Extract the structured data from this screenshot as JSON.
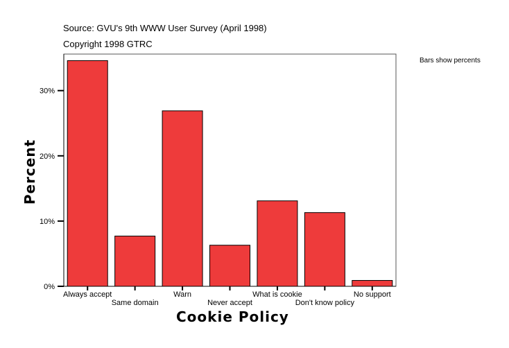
{
  "chart_data": {
    "type": "bar",
    "source_note": "Source: GVU's 9th WWW User Survey (April 1998)",
    "copyright_note": "Copyright 1998 GTRC",
    "legend_note": "Bars show percents",
    "xlabel": "Cookie Policy",
    "ylabel": "Percent",
    "categories": [
      "Always accept",
      "Same domain",
      "Warn",
      "Never accept",
      "What is cookie",
      "Don't know policy",
      "No support"
    ],
    "values": [
      34.6,
      7.7,
      26.9,
      6.3,
      13.1,
      11.3,
      0.9
    ],
    "yticks": [
      0,
      10,
      20,
      30
    ],
    "ytick_labels": [
      "0%",
      "10%",
      "20%",
      "30%"
    ],
    "ylim": [
      0,
      35.6
    ],
    "grid": false,
    "bar_color": "#EE3B3B"
  }
}
